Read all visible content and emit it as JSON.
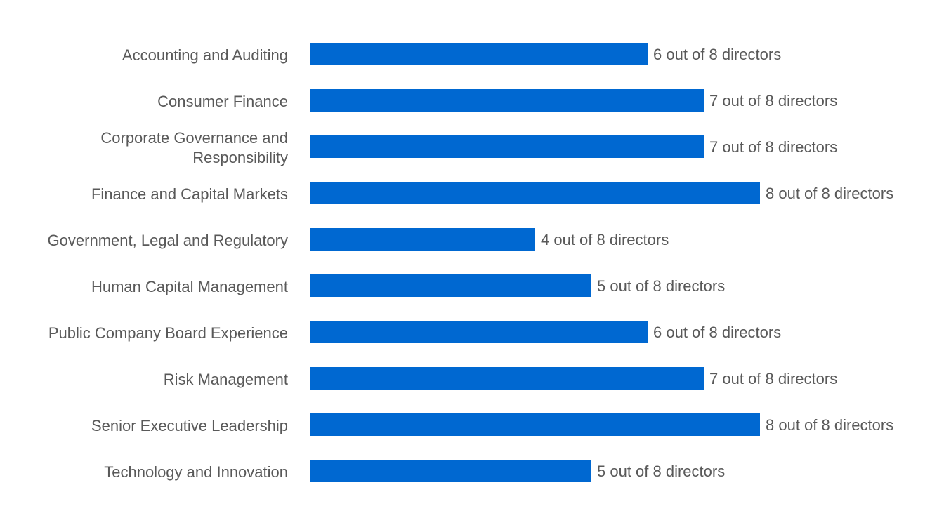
{
  "chart_data": {
    "type": "bar",
    "orientation": "horizontal",
    "categories": [
      "Accounting and Auditing",
      "Consumer Finance",
      "Corporate Governance and Responsibility",
      "Finance and Capital Markets",
      "Government, Legal and Regulatory",
      "Human Capital Management",
      "Public Company Board Experience",
      "Risk Management",
      "Senior Executive Leadership",
      "Technology and Innovation"
    ],
    "category_lines": [
      [
        "Accounting and Auditing"
      ],
      [
        "Consumer Finance"
      ],
      [
        "Corporate Governance and",
        "Responsibility"
      ],
      [
        "Finance and Capital Markets"
      ],
      [
        "Government, Legal and Regulatory"
      ],
      [
        "Human Capital Management"
      ],
      [
        "Public Company Board Experience"
      ],
      [
        "Risk Management"
      ],
      [
        "Senior Executive Leadership"
      ],
      [
        "Technology and Innovation"
      ]
    ],
    "values": [
      6,
      7,
      7,
      8,
      4,
      5,
      6,
      7,
      8,
      5
    ],
    "data_labels": [
      "6 out of 8 directors",
      "7 out of 8 directors",
      "7 out of 8 directors",
      "8 out of 8 directors",
      "4 out of 8 directors",
      "5 out of 8 directors",
      "6 out of 8 directors",
      "7 out of 8 directors",
      "8 out of 8 directors",
      "5 out of 8 directors"
    ],
    "xlim": [
      0,
      8
    ],
    "grid": false,
    "legend": "none",
    "bar_color": "#0068D1",
    "text_color": "#595959"
  }
}
